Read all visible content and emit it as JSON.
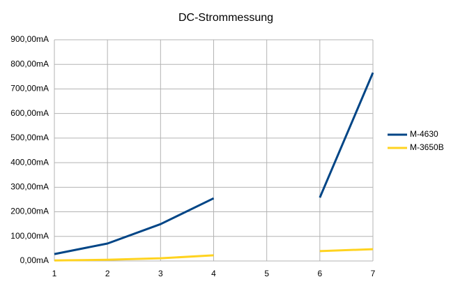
{
  "chart_data": {
    "type": "line",
    "title": "DC-Strommessung",
    "x": [
      1,
      2,
      3,
      4,
      5,
      6,
      7
    ],
    "series": [
      {
        "name": "M-4630",
        "color": "#004586",
        "values": [
          28,
          71,
          150,
          255,
          null,
          258,
          766
        ]
      },
      {
        "name": "M-3650B",
        "color": "#ffd320",
        "values": [
          2,
          5,
          11,
          23,
          null,
          40,
          48
        ]
      }
    ],
    "xlim": [
      1,
      7
    ],
    "xticks": [
      1,
      2,
      3,
      4,
      5,
      6,
      7
    ],
    "ylim": [
      0,
      900
    ],
    "yticks": [
      {
        "value": 0,
        "label": "0,00mA"
      },
      {
        "value": 100,
        "label": "100,00mA"
      },
      {
        "value": 200,
        "label": "200,00mA"
      },
      {
        "value": 300,
        "label": "300,00mA"
      },
      {
        "value": 400,
        "label": "400,00mA"
      },
      {
        "value": 500,
        "label": "500,00mA"
      },
      {
        "value": 600,
        "label": "600,00mA"
      },
      {
        "value": 700,
        "label": "700,00mA"
      },
      {
        "value": 800,
        "label": "800,00mA"
      },
      {
        "value": 900,
        "label": "900,00mA"
      }
    ],
    "grid": true,
    "legend": "right"
  }
}
